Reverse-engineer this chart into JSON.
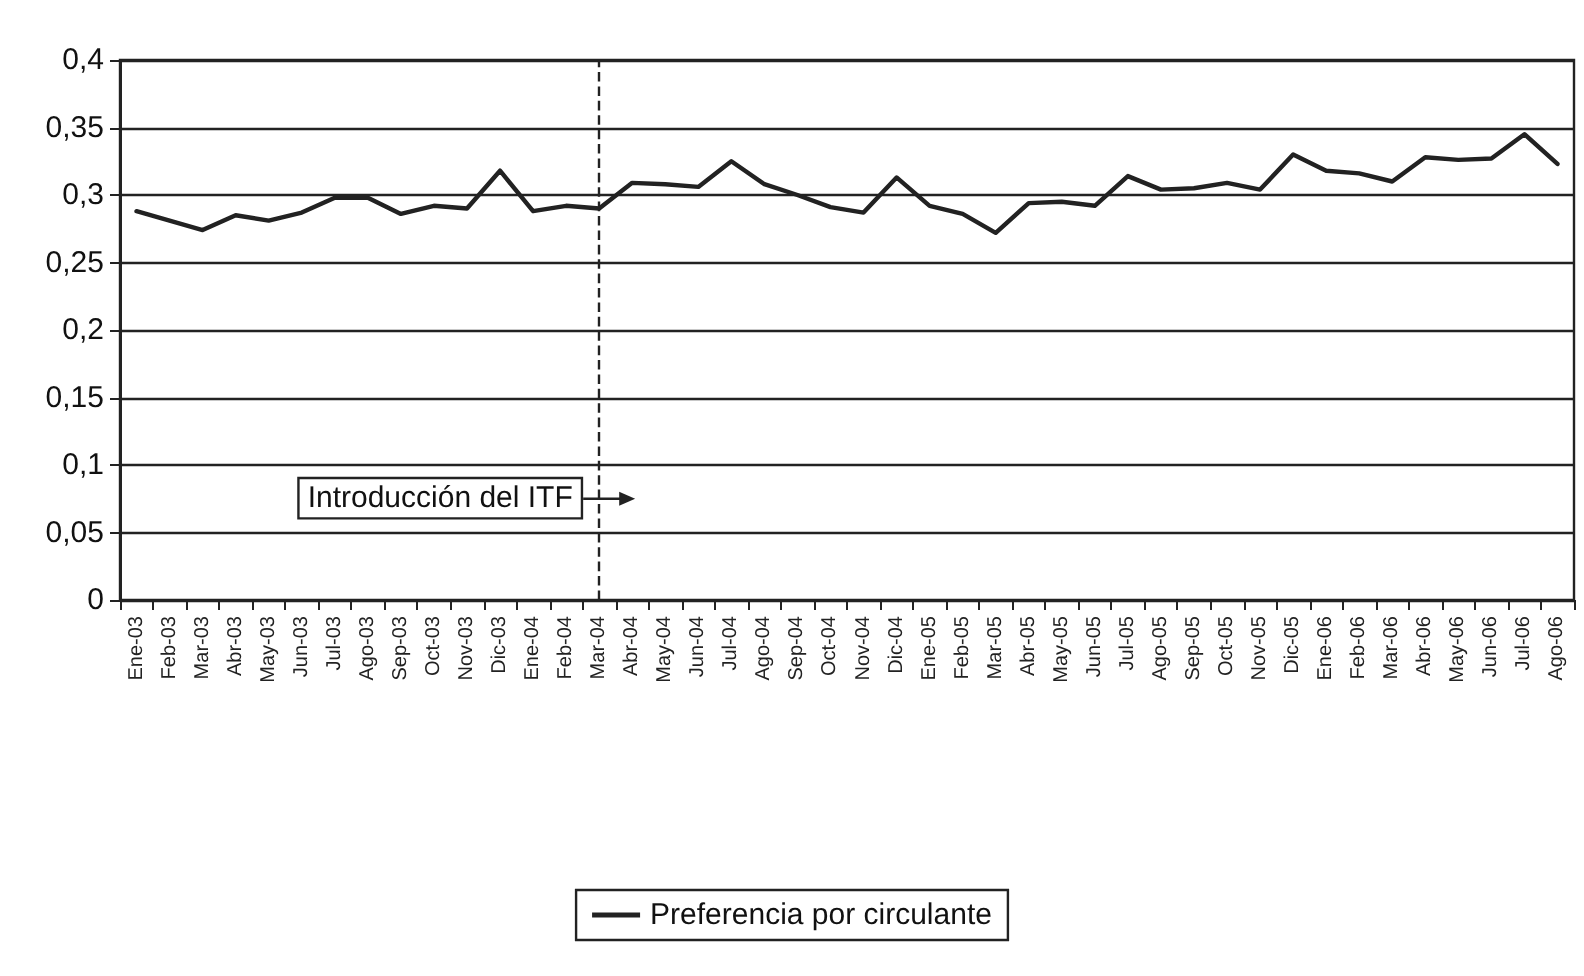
{
  "chart_data": {
    "type": "line",
    "categories": [
      "Ene-03",
      "Feb-03",
      "Mar-03",
      "Abr-03",
      "May-03",
      "Jun-03",
      "Jul-03",
      "Ago-03",
      "Sep-03",
      "Oct-03",
      "Nov-03",
      "Dic-03",
      "Ene-04",
      "Feb-04",
      "Mar-04",
      "Abr-04",
      "May-04",
      "Jun-04",
      "Jul-04",
      "Ago-04",
      "Sep-04",
      "Oct-04",
      "Nov-04",
      "Dic-04",
      "Ene-05",
      "Feb-05",
      "Mar-05",
      "Abr-05",
      "May-05",
      "Jun-05",
      "Jul-05",
      "Ago-05",
      "Sep-05",
      "Oct-05",
      "Nov-05",
      "Dic-05",
      "Ene-06",
      "Feb-06",
      "Mar-06",
      "Abr-06",
      "May-06",
      "Jun-06",
      "Jul-06",
      "Ago-06"
    ],
    "series": [
      {
        "name": "Preferencia por circulante",
        "color": "#222222",
        "values": [
          0.288,
          0.281,
          0.274,
          0.285,
          0.281,
          0.287,
          0.298,
          0.298,
          0.286,
          0.292,
          0.29,
          0.318,
          0.288,
          0.292,
          0.29,
          0.309,
          0.308,
          0.306,
          0.325,
          0.308,
          0.3,
          0.291,
          0.287,
          0.313,
          0.292,
          0.286,
          0.272,
          0.294,
          0.295,
          0.292,
          0.314,
          0.304,
          0.305,
          0.309,
          0.304,
          0.33,
          0.318,
          0.316,
          0.31,
          0.328,
          0.326,
          0.327,
          0.345,
          0.323
        ]
      }
    ],
    "ylim": [
      0,
      0.4
    ],
    "yticks": [
      {
        "value": 0,
        "label": "0"
      },
      {
        "value": 0.05,
        "label": "0,05"
      },
      {
        "value": 0.1,
        "label": "0,1"
      },
      {
        "value": 0.15,
        "label": "0,15"
      },
      {
        "value": 0.2,
        "label": "0,2"
      },
      {
        "value": 0.25,
        "label": "0,25"
      },
      {
        "value": 0.3,
        "label": "0,3"
      },
      {
        "value": 0.35,
        "label": "0,35"
      },
      {
        "value": 0.4,
        "label": "0,4"
      }
    ],
    "ref_lines": [
      {
        "axis": "x",
        "value": "Mar-04",
        "label": "Introducción del ITF",
        "line_style": "dashed",
        "color": "#222222"
      }
    ],
    "grid": "y",
    "legend": "bottom",
    "marker": "none",
    "line_style": "solid"
  }
}
